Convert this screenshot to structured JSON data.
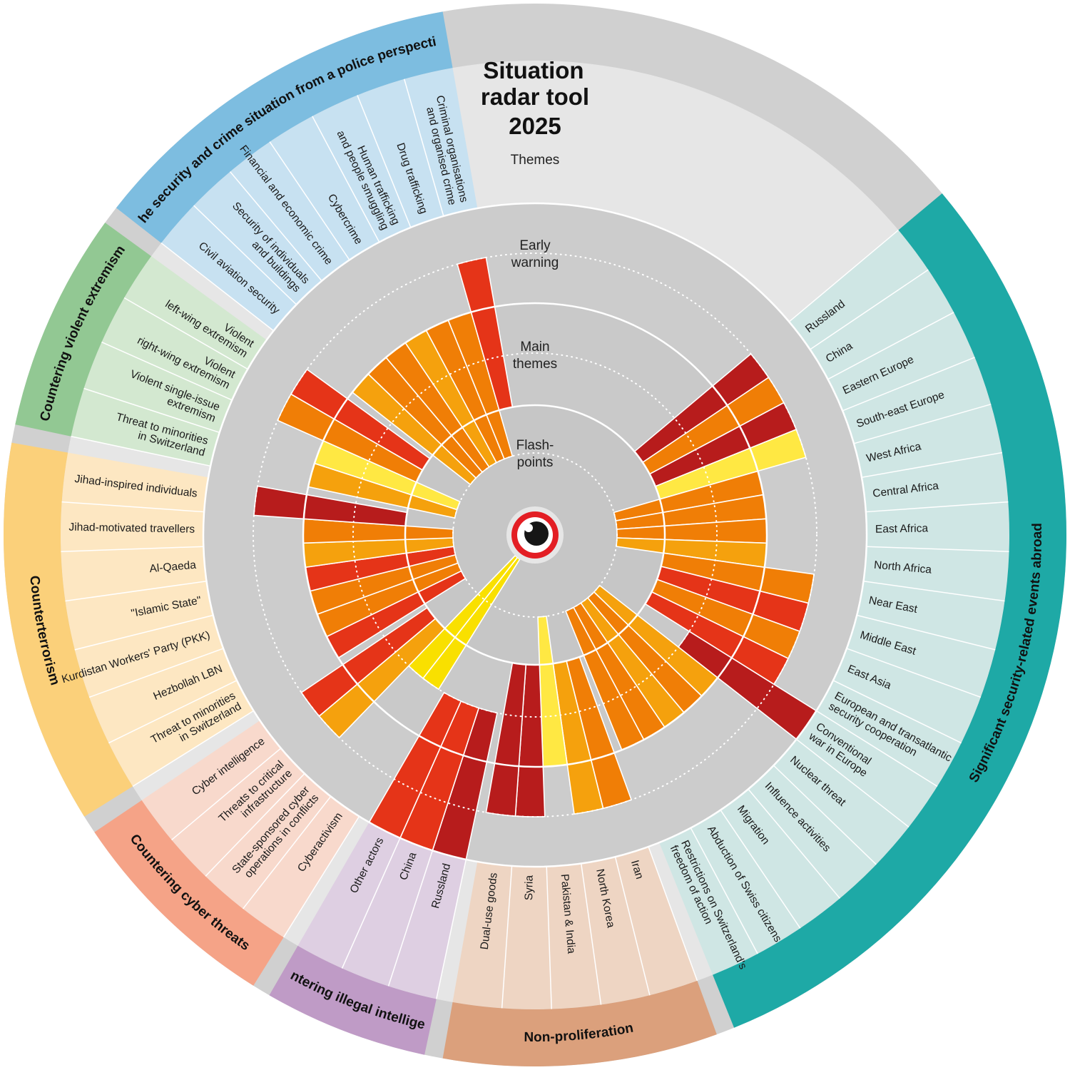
{
  "title_lines": [
    "Situation",
    "radar tool",
    "2025"
  ],
  "zones": {
    "themes": "Themes",
    "early": [
      "Early",
      "warning"
    ],
    "main": [
      "Main",
      "themes"
    ],
    "flash": [
      "Flash-",
      "points"
    ]
  },
  "legend_colors": {
    "darkred": "#b71c1c",
    "red": "#e53418",
    "orange": "#f07e06",
    "lightorange": "#f5a10d",
    "yellow": "#f9e000",
    "lightyellow": "#ffe843"
  },
  "groups": [
    {
      "name": "Significant security-related events abroad",
      "color": "#1ea9a6",
      "bg": "#cfe6e4",
      "topics": [
        {
          "label": [
            "Russland"
          ],
          "level": 3,
          "color": "darkred"
        },
        {
          "label": [
            "China"
          ],
          "level": 3,
          "color": "orange"
        },
        {
          "label": [
            "Eastern Europe"
          ],
          "level": 3,
          "color": "darkred"
        },
        {
          "label": [
            "South-east Europe"
          ],
          "level": 3,
          "color": "lightyellow"
        },
        {
          "label": [
            "West Africa"
          ],
          "level": 2,
          "color": "orange"
        },
        {
          "label": [
            "Central Africa"
          ],
          "level": 2,
          "color": "orange"
        },
        {
          "label": [
            "East Africa"
          ],
          "level": 2,
          "color": "orange"
        },
        {
          "label": [
            "North Africa"
          ],
          "level": 2,
          "color": "lightorange"
        },
        {
          "label": [
            "Near East"
          ],
          "level": 3,
          "color": "orange"
        },
        {
          "label": [
            "Middle East"
          ],
          "level": 3,
          "color": "red"
        },
        {
          "label": [
            "East Asia"
          ],
          "level": 3,
          "color": "orange"
        },
        {
          "label": [
            "European and transatlantic",
            "security cooperation"
          ],
          "level": 3,
          "color": "red"
        },
        {
          "label": [
            "Conventional",
            "war in Europe"
          ],
          "level": 4,
          "color": "darkred"
        },
        {
          "label": [
            "Nuclear threat"
          ],
          "level": 2,
          "color": "lightorange"
        },
        {
          "label": [
            "Influence activities"
          ],
          "level": 2,
          "color": "orange"
        },
        {
          "label": [
            "Migration"
          ],
          "level": 2,
          "color": "lightorange"
        },
        {
          "label": [
            "Abduction of Swiss citizens"
          ],
          "level": 2,
          "color": "orange"
        },
        {
          "label": [
            "Restrictions on Switzerland's",
            "freedom of action"
          ],
          "level": 2,
          "color": "orange"
        }
      ]
    },
    {
      "name": "Non-proliferation",
      "color": "#dba07c",
      "bg": "#eed5c3",
      "topics": [
        {
          "label": [
            "Iran"
          ],
          "level": 3,
          "color": "orange"
        },
        {
          "label": [
            "North Korea"
          ],
          "level": 3,
          "color": "lightorange"
        },
        {
          "label": [
            "Pakistan & India"
          ],
          "level": 2,
          "color": "lightyellow"
        },
        {
          "label": [
            "Syria"
          ],
          "level": 3,
          "color": "darkred"
        },
        {
          "label": [
            "Dual-use goods"
          ],
          "level": 3,
          "color": "darkred"
        }
      ]
    },
    {
      "name": "Countering illegal intelligence",
      "color": "#bf9bc6",
      "bg": "#decfe2",
      "topics": [
        {
          "label": [
            "Russland"
          ],
          "level": 4,
          "color": "darkred"
        },
        {
          "label": [
            "China"
          ],
          "level": 4,
          "color": "red"
        },
        {
          "label": [
            "Other actors"
          ],
          "level": 4,
          "color": "red"
        }
      ]
    },
    {
      "name": "Countering cyber threats",
      "color": "#f5a387",
      "bg": "#f8d9cc",
      "topics": [
        {
          "label": [
            "Cyberactivism"
          ],
          "level": 1,
          "color": "yellow"
        },
        {
          "label": [
            "State-sponsored cyber",
            "operations in conflicts"
          ],
          "level": 1,
          "color": "yellow"
        },
        {
          "label": [
            "Threats to critical",
            "infrastructure"
          ],
          "level": 3,
          "color": "lightorange"
        },
        {
          "label": [
            "Cyber intelligence"
          ],
          "level": 3,
          "color": "red"
        }
      ]
    },
    {
      "name": "Counterterrorism",
      "color": "#fbd07a",
      "bg": "#fde7c2",
      "topics": [
        {
          "label": [
            "Threat to minorities",
            "in Switzerland"
          ],
          "level": 2,
          "color": "red"
        },
        {
          "label": [
            "Hezbollah LBN"
          ],
          "level": 2,
          "color": "orange"
        },
        {
          "label": [
            "Kurdistan Workers' Party (PKK)"
          ],
          "level": 2,
          "color": "orange"
        },
        {
          "label": [
            "\"Islamic State\""
          ],
          "level": 2,
          "color": "red"
        },
        {
          "label": [
            "Al-Qaeda"
          ],
          "level": 2,
          "color": "lightorange"
        },
        {
          "label": [
            "Jihad-motivated travellers"
          ],
          "level": 2,
          "color": "orange"
        },
        {
          "label": [
            "Jihad-inspired individuals"
          ],
          "level": 3,
          "color": "darkred"
        }
      ]
    },
    {
      "name": "Countering violent extremism",
      "color": "#92c893",
      "bg": "#d3e8d0",
      "topics": [
        {
          "label": [
            "Threat to minorities",
            "in Switzerland"
          ],
          "level": 2,
          "color": "lightorange"
        },
        {
          "label": [
            "Violent single-issue",
            "extremism"
          ],
          "level": 2,
          "color": "lightyellow"
        },
        {
          "label": [
            "Violent",
            "right-wing extremism"
          ],
          "level": 3,
          "color": "orange"
        },
        {
          "label": [
            "Violent",
            "left-wing extremism"
          ],
          "level": 3,
          "color": "red"
        }
      ]
    },
    {
      "name": "The security and crime situation from a police perspective",
      "color": "#7dbde0",
      "bg": "#c7e1f1",
      "topics": [
        {
          "label": [
            "Civil aviation security"
          ],
          "level": 2,
          "color": "lightorange"
        },
        {
          "label": [
            "Security of individuals",
            "and buildings"
          ],
          "level": 2,
          "color": "orange"
        },
        {
          "label": [
            "Financial and economic crime"
          ],
          "level": 2,
          "color": "orange"
        },
        {
          "label": [
            "Cybercrime"
          ],
          "level": 2,
          "color": "lightorange"
        },
        {
          "label": [
            "Human trafficking",
            "and people smuggling"
          ],
          "level": 2,
          "color": "orange"
        },
        {
          "label": [
            "Drug trafficking"
          ],
          "level": 2,
          "color": "orange"
        },
        {
          "label": [
            "Criminal organisations",
            "and organised crime"
          ],
          "level": 3,
          "color": "red"
        }
      ]
    }
  ]
}
